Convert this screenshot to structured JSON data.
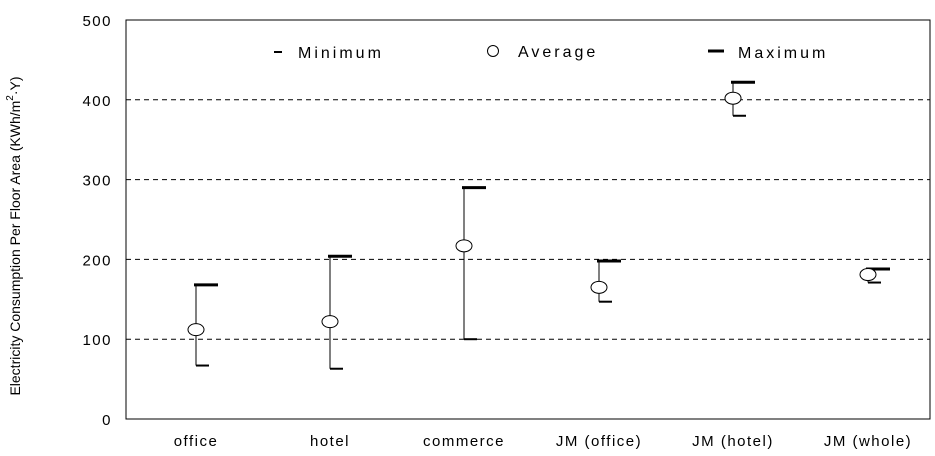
{
  "chart_data": {
    "type": "error-bar",
    "categories": [
      "office",
      "hotel",
      "commerce",
      "JM (office)",
      "JM (hotel)",
      "JM (whole)"
    ],
    "series": [
      {
        "name": "Minimum",
        "values": [
          67,
          63,
          100,
          147,
          380,
          171
        ]
      },
      {
        "name": "Average",
        "values": [
          112,
          122,
          217,
          165,
          402,
          181
        ]
      },
      {
        "name": "Maximum",
        "values": [
          168,
          204,
          290,
          198,
          422,
          188
        ]
      }
    ],
    "ylabel_main": "Electricity Consumption Per Floor Area (KWh/m",
    "ylabel_sup": "2",
    "ylabel_tail": "·Y)",
    "ylim": [
      0,
      500
    ],
    "yticks": [
      0,
      100,
      200,
      300,
      400,
      500
    ],
    "ytick_labels": [
      "0",
      "100",
      "200",
      "300",
      "400",
      "500"
    ],
    "grid": "horizontal dashed",
    "legend_position": "top-center"
  }
}
